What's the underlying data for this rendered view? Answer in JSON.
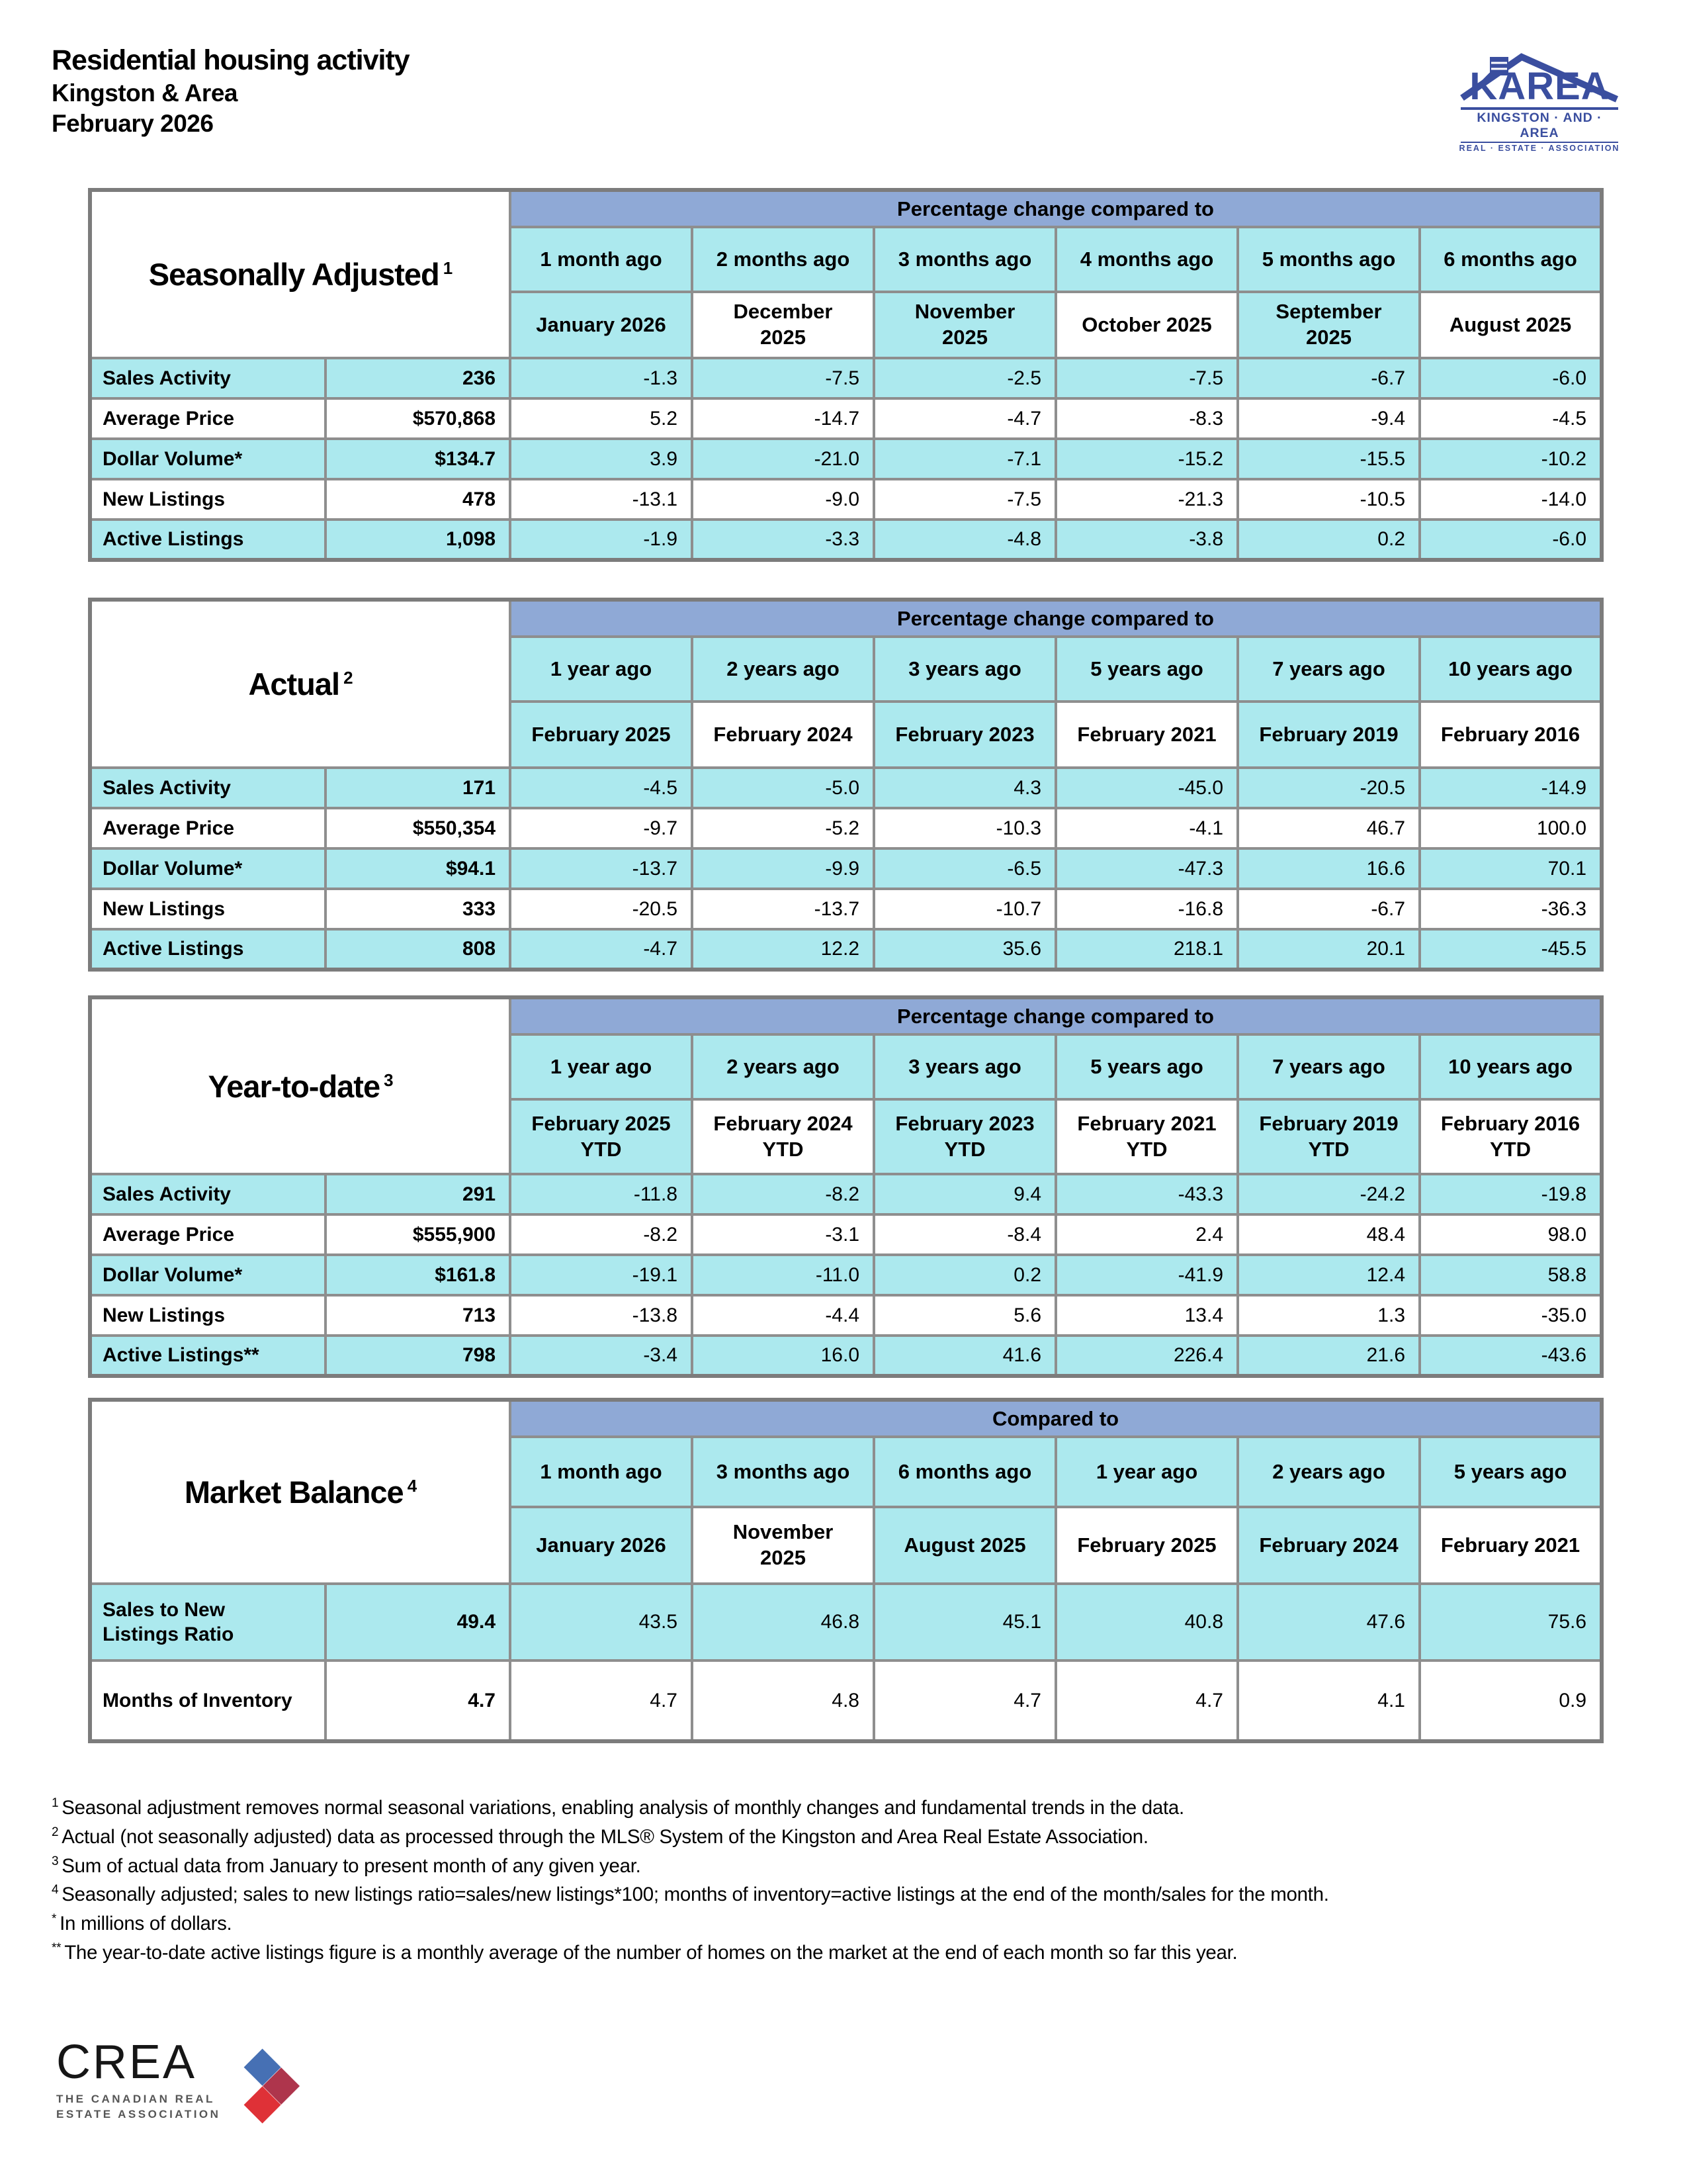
{
  "header": {
    "title": "Residential housing activity",
    "region": "Kingston & Area",
    "period": "February 2026"
  },
  "karea_logo": {
    "acronym": "KAREA",
    "line1": "KINGSTON · AND · AREA",
    "line2": "REAL · ESTATE · ASSOCIATION"
  },
  "crea_logo": {
    "acronym": "CREA",
    "line1": "THE CANADIAN REAL",
    "line2": "ESTATE ASSOCIATION"
  },
  "colors": {
    "band_blue": "#8FA9D6",
    "cell_cyan": "#ACE9EE",
    "border_gray": "#8E8E8E",
    "karea_blue": "#3A4E9F",
    "crea_blue": "#4670B4",
    "crea_maroon": "#A8263E",
    "crea_red": "#DF3137"
  },
  "tables": [
    {
      "name": "Seasonally Adjusted",
      "sup": "1",
      "band": "Percentage change compared to",
      "columns": [
        {
          "rel": "1 month ago",
          "period": "January 2026"
        },
        {
          "rel": "2 months ago",
          "period": "December\n2025"
        },
        {
          "rel": "3 months ago",
          "period": "November\n2025"
        },
        {
          "rel": "4 months ago",
          "period": "October 2025"
        },
        {
          "rel": "5 months ago",
          "period": "September\n2025"
        },
        {
          "rel": "6 months ago",
          "period": "August 2025"
        }
      ],
      "rows": [
        {
          "label": "Sales Activity",
          "value": "236",
          "changes": [
            "-1.3",
            "-7.5",
            "-2.5",
            "-7.5",
            "-6.7",
            "-6.0"
          ]
        },
        {
          "label": "Average Price",
          "value": "$570,868",
          "changes": [
            "5.2",
            "-14.7",
            "-4.7",
            "-8.3",
            "-9.4",
            "-4.5"
          ]
        },
        {
          "label": "Dollar Volume*",
          "value": "$134.7",
          "changes": [
            "3.9",
            "-21.0",
            "-7.1",
            "-15.2",
            "-15.5",
            "-10.2"
          ]
        },
        {
          "label": "New Listings",
          "value": "478",
          "changes": [
            "-13.1",
            "-9.0",
            "-7.5",
            "-21.3",
            "-10.5",
            "-14.0"
          ]
        },
        {
          "label": "Active Listings",
          "value": "1,098",
          "changes": [
            "-1.9",
            "-3.3",
            "-4.8",
            "-3.8",
            "0.2",
            "-6.0"
          ]
        }
      ]
    },
    {
      "name": "Actual",
      "sup": "2",
      "band": "Percentage change compared to",
      "columns": [
        {
          "rel": "1 year ago",
          "period": "February 2025"
        },
        {
          "rel": "2 years ago",
          "period": "February 2024"
        },
        {
          "rel": "3 years ago",
          "period": "February 2023"
        },
        {
          "rel": "5 years ago",
          "period": "February 2021"
        },
        {
          "rel": "7 years ago",
          "period": "February 2019"
        },
        {
          "rel": "10 years ago",
          "period": "February 2016"
        }
      ],
      "rows": [
        {
          "label": "Sales Activity",
          "value": "171",
          "changes": [
            "-4.5",
            "-5.0",
            "4.3",
            "-45.0",
            "-20.5",
            "-14.9"
          ]
        },
        {
          "label": "Average Price",
          "value": "$550,354",
          "changes": [
            "-9.7",
            "-5.2",
            "-10.3",
            "-4.1",
            "46.7",
            "100.0"
          ]
        },
        {
          "label": "Dollar Volume*",
          "value": "$94.1",
          "changes": [
            "-13.7",
            "-9.9",
            "-6.5",
            "-47.3",
            "16.6",
            "70.1"
          ]
        },
        {
          "label": "New Listings",
          "value": "333",
          "changes": [
            "-20.5",
            "-13.7",
            "-10.7",
            "-16.8",
            "-6.7",
            "-36.3"
          ]
        },
        {
          "label": "Active Listings",
          "value": "808",
          "changes": [
            "-4.7",
            "12.2",
            "35.6",
            "218.1",
            "20.1",
            "-45.5"
          ]
        }
      ]
    },
    {
      "name": "Year-to-date",
      "sup": "3",
      "band": "Percentage change compared to",
      "columns": [
        {
          "rel": "1 year ago",
          "period": "February 2025\nYTD"
        },
        {
          "rel": "2 years ago",
          "period": "February 2024\nYTD"
        },
        {
          "rel": "3 years ago",
          "period": "February 2023\nYTD"
        },
        {
          "rel": "5 years ago",
          "period": "February 2021\nYTD"
        },
        {
          "rel": "7 years ago",
          "period": "February 2019\nYTD"
        },
        {
          "rel": "10 years ago",
          "period": "February 2016\nYTD"
        }
      ],
      "rows": [
        {
          "label": "Sales Activity",
          "value": "291",
          "changes": [
            "-11.8",
            "-8.2",
            "9.4",
            "-43.3",
            "-24.2",
            "-19.8"
          ]
        },
        {
          "label": "Average Price",
          "value": "$555,900",
          "changes": [
            "-8.2",
            "-3.1",
            "-8.4",
            "2.4",
            "48.4",
            "98.0"
          ]
        },
        {
          "label": "Dollar Volume*",
          "value": "$161.8",
          "changes": [
            "-19.1",
            "-11.0",
            "0.2",
            "-41.9",
            "12.4",
            "58.8"
          ]
        },
        {
          "label": "New Listings",
          "value": "713",
          "changes": [
            "-13.8",
            "-4.4",
            "5.6",
            "13.4",
            "1.3",
            "-35.0"
          ]
        },
        {
          "label": "Active Listings**",
          "value": "798",
          "changes": [
            "-3.4",
            "16.0",
            "41.6",
            "226.4",
            "21.6",
            "-43.6"
          ]
        }
      ]
    },
    {
      "name": "Market Balance",
      "sup": "4",
      "band": "Compared to",
      "columns": [
        {
          "rel": "1 month ago",
          "period": "January 2026"
        },
        {
          "rel": "3 months ago",
          "period": "November\n2025"
        },
        {
          "rel": "6 months ago",
          "period": "August 2025"
        },
        {
          "rel": "1 year ago",
          "period": "February 2025"
        },
        {
          "rel": "2 years ago",
          "period": "February 2024"
        },
        {
          "rel": "5 years ago",
          "period": "February 2021"
        }
      ],
      "rows": [
        {
          "label": "Sales to New\nListings Ratio",
          "value": "49.4",
          "changes": [
            "43.5",
            "46.8",
            "45.1",
            "40.8",
            "47.6",
            "75.6"
          ]
        },
        {
          "label": "Months of Inventory",
          "value": "4.7",
          "changes": [
            "4.7",
            "4.8",
            "4.7",
            "4.7",
            "4.1",
            "0.9"
          ]
        }
      ]
    }
  ],
  "footnotes": [
    {
      "marker": "1",
      "text": "Seasonal adjustment removes normal seasonal variations, enabling analysis of monthly changes and fundamental trends in the data."
    },
    {
      "marker": "2",
      "text": "Actual (not seasonally adjusted) data as processed through the MLS® System of the Kingston and Area Real Estate Association."
    },
    {
      "marker": "3",
      "text": "Sum of actual data from January to present month of any given year."
    },
    {
      "marker": "4",
      "text": "Seasonally adjusted; sales to new listings ratio=sales/new listings*100; months of inventory=active listings at the end of the month/sales for the month."
    },
    {
      "marker": "*",
      "text": "In millions of dollars."
    },
    {
      "marker": "**",
      "text": "The year-to-date active listings figure is a monthly average of the number of homes on the market at the end of each month so far this year."
    }
  ]
}
